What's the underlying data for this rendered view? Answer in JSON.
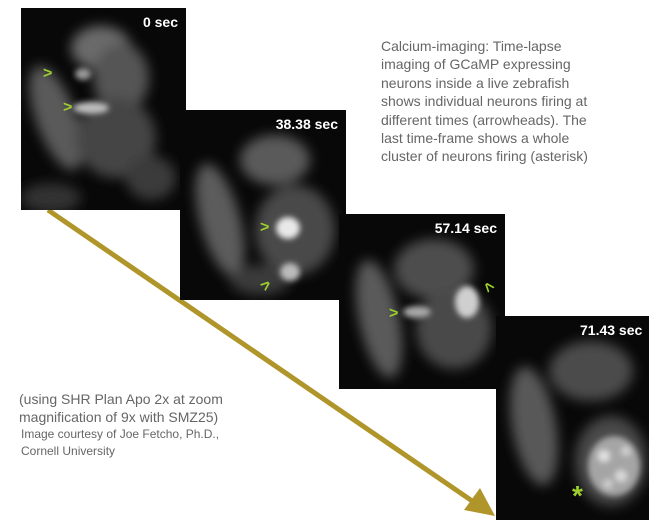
{
  "frames": [
    {
      "time": "0 sec"
    },
    {
      "time": "38.38 sec"
    },
    {
      "time": "57.14 sec"
    },
    {
      "time": "71.43 sec"
    }
  ],
  "caption": "Calcium-imaging: Time-lapse\nimaging of GCaMP expressing\nneurons inside a live zebrafish\nshows individual neurons firing at\ndifferent times (arrowheads). The\nlast time-frame shows a whole\ncluster of neurons firing (asterisk)",
  "note": "(using SHR Plan Apo 2x at zoom\nmagnification of 9x with SMZ25)",
  "credit": "Image courtesy of  Joe Fetcho, Ph.D.,\nCornell University",
  "colors": {
    "arrow": "#b0952a",
    "marker": "#9ccf2e",
    "text": "#666666"
  }
}
